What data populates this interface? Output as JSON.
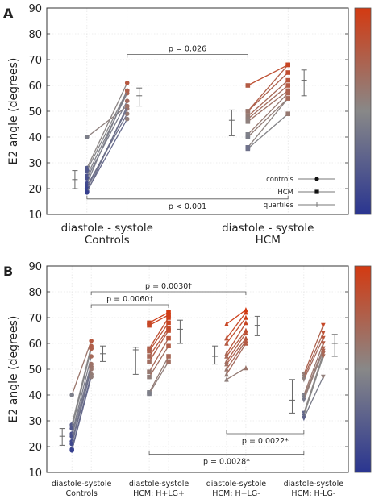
{
  "chart_data": [
    {
      "panel": "A",
      "type": "scatter",
      "ylabel": "E2 angle (degrees)",
      "ylim": [
        10,
        90
      ],
      "yticks": [
        "10",
        "20",
        "30",
        "40",
        "50",
        "60",
        "70",
        "80",
        "90"
      ],
      "grid": true,
      "groups": [
        {
          "label_lines": [
            "diastole - systole",
            "Controls"
          ],
          "x": [
            1,
            2
          ],
          "pairs": [
            [
              40,
              52
            ],
            [
              28,
              61
            ],
            [
              27,
              58
            ],
            [
              25,
              57
            ],
            [
              24,
              54
            ],
            [
              22,
              58
            ],
            [
              21,
              49
            ],
            [
              20,
              51
            ],
            [
              19,
              47
            ],
            [
              18.5,
              52
            ]
          ],
          "quartiles": [
            {
              "x": 0.7,
              "q1": 20,
              "median": 23.5,
              "q3": 27
            },
            {
              "x": 2.3,
              "q1": 52,
              "median": 56,
              "q3": 59
            }
          ]
        },
        {
          "label_lines": [
            "diastole - systole",
            "HCM"
          ],
          "x": [
            5,
            6
          ],
          "pairs": [
            [
              60,
              68
            ],
            [
              50,
              68
            ],
            [
              50,
              65
            ],
            [
              48,
              62
            ],
            [
              47,
              60
            ],
            [
              46,
              58
            ],
            [
              41,
              57
            ],
            [
              40,
              55
            ],
            [
              36,
              55
            ],
            [
              35.5,
              49
            ]
          ],
          "quartiles": [
            {
              "x": 4.6,
              "q1": 40.5,
              "median": 46.5,
              "q3": 50.5
            },
            {
              "x": 6.4,
              "q1": 56,
              "median": 62,
              "q3": 66
            }
          ]
        }
      ],
      "annotations": [
        {
          "text": "p = 0.026",
          "from": 2,
          "to": 5,
          "y": 72,
          "side": "above"
        },
        {
          "text": "p < 0.001",
          "from": 1,
          "to": 6,
          "y": 16,
          "side": "below"
        }
      ],
      "legend": {
        "placement": "bottom-right",
        "entries": [
          {
            "label": "controls",
            "marker": "circle"
          },
          {
            "label": "HCM",
            "marker": "square"
          },
          {
            "label": "quartiles",
            "marker": "plus"
          }
        ]
      },
      "colorbar": {
        "colors": [
          "#2a3590",
          "#888888",
          "#d33a12"
        ]
      }
    },
    {
      "panel": "B",
      "type": "scatter",
      "ylabel": "E2 angle (degrees)",
      "ylim": [
        10,
        90
      ],
      "yticks": [
        "10",
        "20",
        "30",
        "40",
        "50",
        "60",
        "70",
        "80",
        "90"
      ],
      "grid": true,
      "groups": [
        {
          "label_lines": [
            "diastole-systole",
            "Controls"
          ],
          "x": [
            1,
            2
          ],
          "marker": "circle",
          "pairs": [
            [
              40,
              61
            ],
            [
              28.5,
              59
            ],
            [
              28,
              58
            ],
            [
              27,
              58
            ],
            [
              25,
              55
            ],
            [
              24,
              52
            ],
            [
              22,
              51
            ],
            [
              21,
              50
            ],
            [
              19,
              48
            ],
            [
              18.5,
              47
            ]
          ],
          "quartiles": [
            {
              "x": 0.5,
              "q1": 20.5,
              "median": 24,
              "q3": 27
            },
            {
              "x": 2.6,
              "q1": 53,
              "median": 56,
              "q3": 59
            }
          ]
        },
        {
          "label_lines": [
            "diastole-systole",
            "HCM: H+LG+"
          ],
          "x": [
            5,
            6
          ],
          "marker": "square",
          "pairs": [
            [
              68,
              72
            ],
            [
              67,
              71
            ],
            [
              58,
              70
            ],
            [
              57,
              68
            ],
            [
              55,
              66
            ],
            [
              53,
              65
            ],
            [
              49,
              62
            ],
            [
              47,
              59
            ],
            [
              41,
              55
            ],
            [
              40.5,
              53
            ]
          ],
          "quartiles": [
            {
              "x": 4.3,
              "q1": 48,
              "median": 57.5,
              "q3": 58.5
            },
            {
              "x": 6.6,
              "q1": 60,
              "median": 65.5,
              "q3": 69
            }
          ]
        },
        {
          "label_lines": [
            "diastole-systole",
            "HCM: H+LG-"
          ],
          "x": [
            9,
            10
          ],
          "marker": "triangle",
          "pairs": [
            [
              67.5,
              73
            ],
            [
              62,
              72
            ],
            [
              60,
              70
            ],
            [
              56,
              68
            ],
            [
              55,
              65
            ],
            [
              53,
              64
            ],
            [
              52,
              62
            ],
            [
              50,
              61
            ],
            [
              48,
              60
            ],
            [
              46,
              50.5
            ]
          ],
          "quartiles": [
            {
              "x": 8.4,
              "q1": 52,
              "median": 55,
              "q3": 59
            },
            {
              "x": 10.6,
              "q1": 63,
              "median": 67,
              "q3": 70.5
            }
          ]
        },
        {
          "label_lines": [
            "diastole-systole",
            "HCM: H-LG-"
          ],
          "x": [
            13,
            14
          ],
          "marker": "inverted-triangle",
          "pairs": [
            [
              48,
              67
            ],
            [
              47,
              64
            ],
            [
              46,
              62
            ],
            [
              40,
              60
            ],
            [
              39,
              58
            ],
            [
              38,
              57
            ],
            [
              33,
              56
            ],
            [
              32,
              55
            ],
            [
              31,
              47
            ]
          ],
          "quartiles": [
            {
              "x": 12.4,
              "q1": 33,
              "median": 38,
              "q3": 46
            },
            {
              "x": 14.6,
              "q1": 55,
              "median": 60,
              "q3": 63.5
            }
          ]
        }
      ],
      "annotations": [
        {
          "text": "p = 0.0030†",
          "from": 2,
          "to": 10,
          "y": 80,
          "side": "above"
        },
        {
          "text": "p = 0.0060†",
          "from": 2,
          "to": 6,
          "y": 75,
          "side": "above"
        },
        {
          "text": "p = 0.0022*",
          "from": 9,
          "to": 13,
          "y": 25,
          "side": "below"
        },
        {
          "text": "p = 0.0028*",
          "from": 5,
          "to": 13,
          "y": 17,
          "side": "below"
        }
      ],
      "colorbar": {
        "colors": [
          "#2a3590",
          "#888888",
          "#d33a12"
        ]
      }
    }
  ]
}
